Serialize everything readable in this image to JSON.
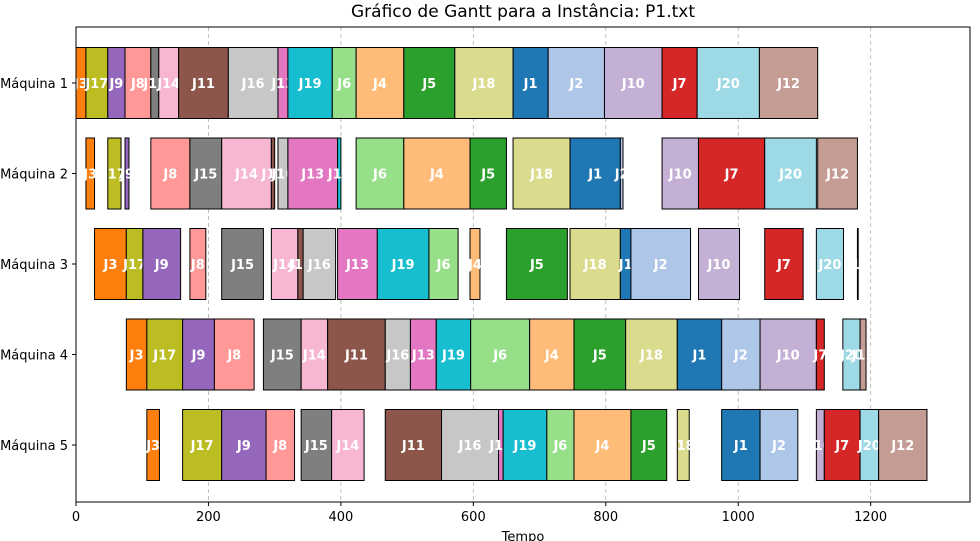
{
  "chart_data": {
    "type": "gantt",
    "title": "Gráfico de Gantt para a Instância: P1.txt",
    "xlabel": "Tempo",
    "ylabel": "",
    "xlim": [
      0,
      1350
    ],
    "x_ticks": [
      0,
      200,
      400,
      600,
      800,
      1000,
      1200
    ],
    "grid": "vertical dashed",
    "machines": [
      "Máquina 1",
      "Máquina 2",
      "Máquina 3",
      "Máquina 4",
      "Máquina 5"
    ],
    "job_colors": {
      "J1": "#1f77b4",
      "J2": "#aec7e8",
      "J3": "#ff7f0e",
      "J4": "#ffbb78",
      "J5": "#2ca02c",
      "J6": "#98df8a",
      "J7": "#d62728",
      "J8": "#ff9896",
      "J9": "#9467bd",
      "J10": "#c5b0d5",
      "J11": "#8c564b",
      "J12": "#c49c94",
      "J13": "#e377c2",
      "J14": "#f7b6d2",
      "J15": "#7f7f7f",
      "J16": "#c7c7c7",
      "J17": "#bcbd22",
      "J18": "#dbdb8d",
      "J19": "#17becf",
      "J20": "#9edae5"
    },
    "tasks": [
      {
        "machine": 0,
        "job": "J3",
        "start": 0,
        "end": 15
      },
      {
        "machine": 0,
        "job": "J17",
        "start": 15,
        "end": 48
      },
      {
        "machine": 0,
        "job": "J9",
        "start": 48,
        "end": 74
      },
      {
        "machine": 0,
        "job": "J8",
        "start": 74,
        "end": 113
      },
      {
        "machine": 0,
        "job": "J15",
        "start": 113,
        "end": 125
      },
      {
        "machine": 0,
        "job": "J14",
        "start": 125,
        "end": 155
      },
      {
        "machine": 0,
        "job": "J11",
        "start": 155,
        "end": 230
      },
      {
        "machine": 0,
        "job": "J16",
        "start": 230,
        "end": 305
      },
      {
        "machine": 0,
        "job": "J13",
        "start": 305,
        "end": 320
      },
      {
        "machine": 0,
        "job": "J19",
        "start": 320,
        "end": 387
      },
      {
        "machine": 0,
        "job": "J6",
        "start": 387,
        "end": 423
      },
      {
        "machine": 0,
        "job": "J4",
        "start": 423,
        "end": 495
      },
      {
        "machine": 0,
        "job": "J5",
        "start": 495,
        "end": 572
      },
      {
        "machine": 0,
        "job": "J18",
        "start": 572,
        "end": 660
      },
      {
        "machine": 0,
        "job": "J1",
        "start": 660,
        "end": 713
      },
      {
        "machine": 0,
        "job": "J2",
        "start": 713,
        "end": 798
      },
      {
        "machine": 0,
        "job": "J10",
        "start": 798,
        "end": 885
      },
      {
        "machine": 0,
        "job": "J7",
        "start": 885,
        "end": 938
      },
      {
        "machine": 0,
        "job": "J20",
        "start": 938,
        "end": 1032
      },
      {
        "machine": 0,
        "job": "J12",
        "start": 1032,
        "end": 1120
      },
      {
        "machine": 1,
        "job": "J3",
        "start": 15,
        "end": 28
      },
      {
        "machine": 1,
        "job": "J17",
        "start": 48,
        "end": 68
      },
      {
        "machine": 1,
        "job": "J9",
        "start": 74,
        "end": 80
      },
      {
        "machine": 1,
        "job": "J8",
        "start": 113,
        "end": 172
      },
      {
        "machine": 1,
        "job": "J15",
        "start": 172,
        "end": 220
      },
      {
        "machine": 1,
        "job": "J14",
        "start": 220,
        "end": 295
      },
      {
        "machine": 1,
        "job": "J11",
        "start": 295,
        "end": 300
      },
      {
        "machine": 1,
        "job": "J16",
        "start": 305,
        "end": 320
      },
      {
        "machine": 1,
        "job": "J13",
        "start": 320,
        "end": 395
      },
      {
        "machine": 1,
        "job": "J19",
        "start": 395,
        "end": 400
      },
      {
        "machine": 1,
        "job": "J6",
        "start": 423,
        "end": 495
      },
      {
        "machine": 1,
        "job": "J4",
        "start": 495,
        "end": 595
      },
      {
        "machine": 1,
        "job": "J5",
        "start": 595,
        "end": 650
      },
      {
        "machine": 1,
        "job": "J18",
        "start": 660,
        "end": 746
      },
      {
        "machine": 1,
        "job": "J1",
        "start": 746,
        "end": 822
      },
      {
        "machine": 1,
        "job": "J2",
        "start": 822,
        "end": 826
      },
      {
        "machine": 1,
        "job": "J10",
        "start": 885,
        "end": 940
      },
      {
        "machine": 1,
        "job": "J7",
        "start": 940,
        "end": 1040
      },
      {
        "machine": 1,
        "job": "J20",
        "start": 1040,
        "end": 1118
      },
      {
        "machine": 1,
        "job": "J12",
        "start": 1120,
        "end": 1180
      },
      {
        "machine": 2,
        "job": "J3",
        "start": 28,
        "end": 76
      },
      {
        "machine": 2,
        "job": "J17",
        "start": 76,
        "end": 101
      },
      {
        "machine": 2,
        "job": "J9",
        "start": 101,
        "end": 158
      },
      {
        "machine": 2,
        "job": "J8",
        "start": 172,
        "end": 196
      },
      {
        "machine": 2,
        "job": "J15",
        "start": 220,
        "end": 283
      },
      {
        "machine": 2,
        "job": "J14",
        "start": 295,
        "end": 335
      },
      {
        "machine": 2,
        "job": "J11",
        "start": 335,
        "end": 343
      },
      {
        "machine": 2,
        "job": "J16",
        "start": 343,
        "end": 392
      },
      {
        "machine": 2,
        "job": "J13",
        "start": 395,
        "end": 455
      },
      {
        "machine": 2,
        "job": "J19",
        "start": 455,
        "end": 533
      },
      {
        "machine": 2,
        "job": "J6",
        "start": 533,
        "end": 577
      },
      {
        "machine": 2,
        "job": "J4",
        "start": 595,
        "end": 610
      },
      {
        "machine": 2,
        "job": "J5",
        "start": 650,
        "end": 742
      },
      {
        "machine": 2,
        "job": "J18",
        "start": 746,
        "end": 822
      },
      {
        "machine": 2,
        "job": "J1",
        "start": 822,
        "end": 838
      },
      {
        "machine": 2,
        "job": "J2",
        "start": 838,
        "end": 928
      },
      {
        "machine": 2,
        "job": "J10",
        "start": 940,
        "end": 1002
      },
      {
        "machine": 2,
        "job": "J7",
        "start": 1040,
        "end": 1098
      },
      {
        "machine": 2,
        "job": "J20",
        "start": 1118,
        "end": 1159
      },
      {
        "machine": 2,
        "job": "J12",
        "start": 1180,
        "end": 1181
      },
      {
        "machine": 3,
        "job": "J3",
        "start": 76,
        "end": 107
      },
      {
        "machine": 3,
        "job": "J17",
        "start": 107,
        "end": 161
      },
      {
        "machine": 3,
        "job": "J9",
        "start": 161,
        "end": 209
      },
      {
        "machine": 3,
        "job": "J8",
        "start": 209,
        "end": 269
      },
      {
        "machine": 3,
        "job": "J15",
        "start": 283,
        "end": 340
      },
      {
        "machine": 3,
        "job": "J14",
        "start": 340,
        "end": 380
      },
      {
        "machine": 3,
        "job": "J11",
        "start": 380,
        "end": 467
      },
      {
        "machine": 3,
        "job": "J16",
        "start": 467,
        "end": 505
      },
      {
        "machine": 3,
        "job": "J13",
        "start": 505,
        "end": 544
      },
      {
        "machine": 3,
        "job": "J19",
        "start": 544,
        "end": 596
      },
      {
        "machine": 3,
        "job": "J6",
        "start": 596,
        "end": 685
      },
      {
        "machine": 3,
        "job": "J4",
        "start": 685,
        "end": 752
      },
      {
        "machine": 3,
        "job": "J5",
        "start": 752,
        "end": 830
      },
      {
        "machine": 3,
        "job": "J18",
        "start": 830,
        "end": 908
      },
      {
        "machine": 3,
        "job": "J1",
        "start": 908,
        "end": 975
      },
      {
        "machine": 3,
        "job": "J2",
        "start": 975,
        "end": 1033
      },
      {
        "machine": 3,
        "job": "J10",
        "start": 1033,
        "end": 1118
      },
      {
        "machine": 3,
        "job": "J7",
        "start": 1118,
        "end": 1130
      },
      {
        "machine": 3,
        "job": "J20",
        "start": 1158,
        "end": 1184
      },
      {
        "machine": 3,
        "job": "J12",
        "start": 1184,
        "end": 1193
      },
      {
        "machine": 4,
        "job": "J3",
        "start": 107,
        "end": 126
      },
      {
        "machine": 4,
        "job": "J17",
        "start": 161,
        "end": 220
      },
      {
        "machine": 4,
        "job": "J9",
        "start": 220,
        "end": 287
      },
      {
        "machine": 4,
        "job": "J8",
        "start": 287,
        "end": 330
      },
      {
        "machine": 4,
        "job": "J15",
        "start": 340,
        "end": 386
      },
      {
        "machine": 4,
        "job": "J14",
        "start": 386,
        "end": 435
      },
      {
        "machine": 4,
        "job": "J11",
        "start": 467,
        "end": 552
      },
      {
        "machine": 4,
        "job": "J16",
        "start": 552,
        "end": 638
      },
      {
        "machine": 4,
        "job": "J13",
        "start": 638,
        "end": 645
      },
      {
        "machine": 4,
        "job": "J19",
        "start": 645,
        "end": 711
      },
      {
        "machine": 4,
        "job": "J6",
        "start": 711,
        "end": 752
      },
      {
        "machine": 4,
        "job": "J4",
        "start": 752,
        "end": 838
      },
      {
        "machine": 4,
        "job": "J5",
        "start": 838,
        "end": 892
      },
      {
        "machine": 4,
        "job": "J18",
        "start": 908,
        "end": 926
      },
      {
        "machine": 4,
        "job": "J1",
        "start": 975,
        "end": 1033
      },
      {
        "machine": 4,
        "job": "J2",
        "start": 1033,
        "end": 1090
      },
      {
        "machine": 4,
        "job": "J10",
        "start": 1118,
        "end": 1130
      },
      {
        "machine": 4,
        "job": "J7",
        "start": 1130,
        "end": 1184
      },
      {
        "machine": 4,
        "job": "J20",
        "start": 1184,
        "end": 1212
      },
      {
        "machine": 4,
        "job": "J12",
        "start": 1212,
        "end": 1285
      }
    ]
  }
}
